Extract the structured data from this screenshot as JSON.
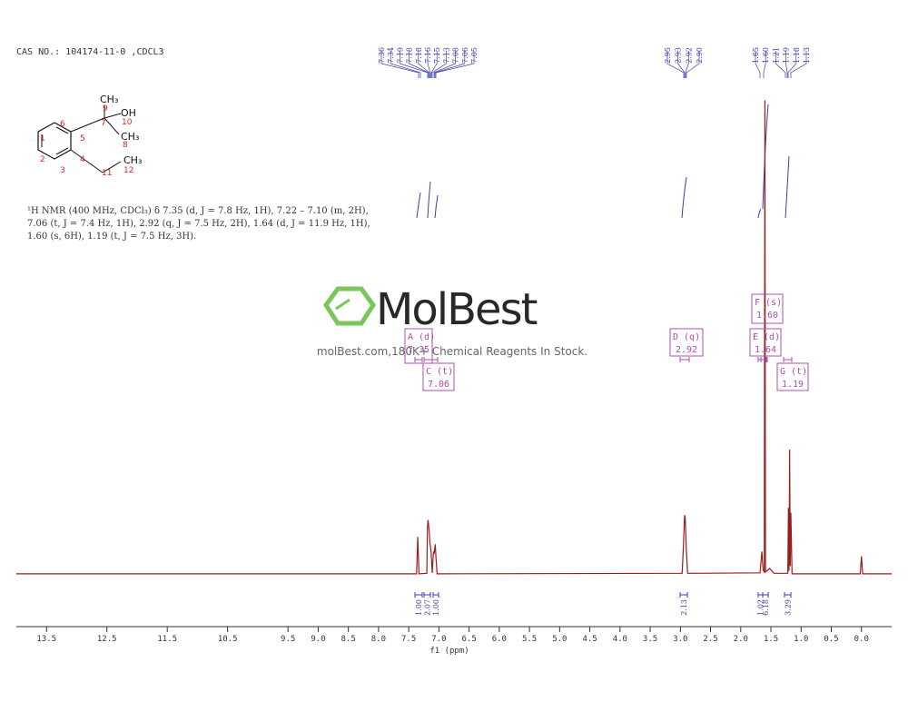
{
  "cas": "CAS NO.: 104174-11-0 ,CDCL3",
  "nmr_text": [
    "¹H NMR (400 MHz, CDCl₃) δ 7.35 (d, J = 7.8 Hz, 1H), 7.22 – 7.10 (m, 2H),",
    "7.06 (t, J = 7.4 Hz, 1H), 2.92 (q, J = 7.5 Hz, 2H), 1.64 (d, J = 11.9 Hz, 1H),",
    "1.60 (s, 6H), 1.19 (t, J = 7.5 Hz, 3H)."
  ],
  "structure": {
    "labels": [
      "CH₃",
      "OH",
      "CH₃",
      "CH₃",
      "9",
      "10",
      "7",
      "6",
      "5",
      "1",
      "8",
      "2",
      "4",
      "11",
      "12",
      "3"
    ]
  },
  "watermark": {
    "brand": "MolBest",
    "tagline": "molBest.com,180K+ Chemical Reagents In Stock."
  },
  "peak_labels": [
    [
      "7.36",
      "7.34",
      "7.19",
      "7.18",
      "7.18",
      "7.16",
      "7.15",
      "7.13",
      "7.08",
      "7.06",
      "7.05"
    ],
    [
      "2.95",
      "2.93",
      "2.92",
      "2.90"
    ],
    [
      "1.65",
      "1.60",
      "1.21",
      "1.19",
      "1.18",
      "1.13"
    ]
  ],
  "multiplets": [
    {
      "name": "A (d)",
      "shift": "7.35"
    },
    {
      "name": "C (t)",
      "shift": "7.06"
    },
    {
      "name": "D (q)",
      "shift": "2.92"
    },
    {
      "name": "E (d)",
      "shift": "1.64"
    },
    {
      "name": "F (s)",
      "shift": "1.60"
    },
    {
      "name": "G (t)",
      "shift": "1.19"
    }
  ],
  "integrals": [
    "1.00",
    "2.07",
    "1.00",
    "2.13",
    "1.02",
    "6.18",
    "3.29"
  ],
  "chart_data": {
    "type": "line",
    "xlabel": "f1 (ppm)",
    "color": "#9b1c1c",
    "x": [
      14.0,
      7.37,
      7.35,
      7.33,
      7.2,
      7.19,
      7.18,
      7.16,
      7.15,
      7.13,
      7.11,
      7.09,
      7.08,
      7.06,
      7.05,
      7.03,
      2.97,
      2.95,
      2.93,
      2.92,
      2.9,
      2.88,
      1.68,
      1.65,
      1.63,
      1.61,
      1.6,
      1.59,
      1.52,
      1.45,
      1.22,
      1.21,
      1.2,
      1.19,
      1.18,
      1.17,
      1.15,
      0.02,
      0.0,
      -0.02,
      -0.5
    ],
    "values": [
      0.4,
      0.4,
      8,
      0.4,
      0.5,
      10,
      11.5,
      9,
      7,
      5,
      0.6,
      5,
      4.5,
      6.5,
      4,
      0.4,
      0.5,
      6,
      12.5,
      12,
      5,
      0.5,
      0.6,
      5,
      1.2,
      0.8,
      98,
      0.8,
      1.5,
      0.5,
      0.5,
      14,
      1,
      26,
      2,
      13,
      0.4,
      0.4,
      4,
      0.4,
      0.4
    ],
    "xlim": [
      14.0,
      -0.5
    ],
    "ylim": [
      0,
      100
    ],
    "xticks": [
      13.5,
      12.5,
      11.5,
      10.5,
      9.5,
      {
        "value": 9,
        "label": "9.0"
      },
      8.5,
      {
        "value": 8,
        "label": "8.0"
      },
      7.5,
      {
        "value": 7,
        "label": "7.0"
      },
      6.5,
      {
        "value": 6,
        "label": "6.0"
      },
      5.5,
      {
        "value": 5,
        "label": "5.0"
      },
      4.5,
      {
        "value": 4,
        "label": "4.0"
      },
      3.5,
      {
        "value": 3,
        "label": "3.0"
      },
      2.5,
      {
        "value": 2,
        "label": "2.0"
      },
      1.5,
      {
        "value": 1,
        "label": "1.0"
      },
      0.5,
      {
        "value": 0,
        "label": "0.0"
      }
    ]
  }
}
